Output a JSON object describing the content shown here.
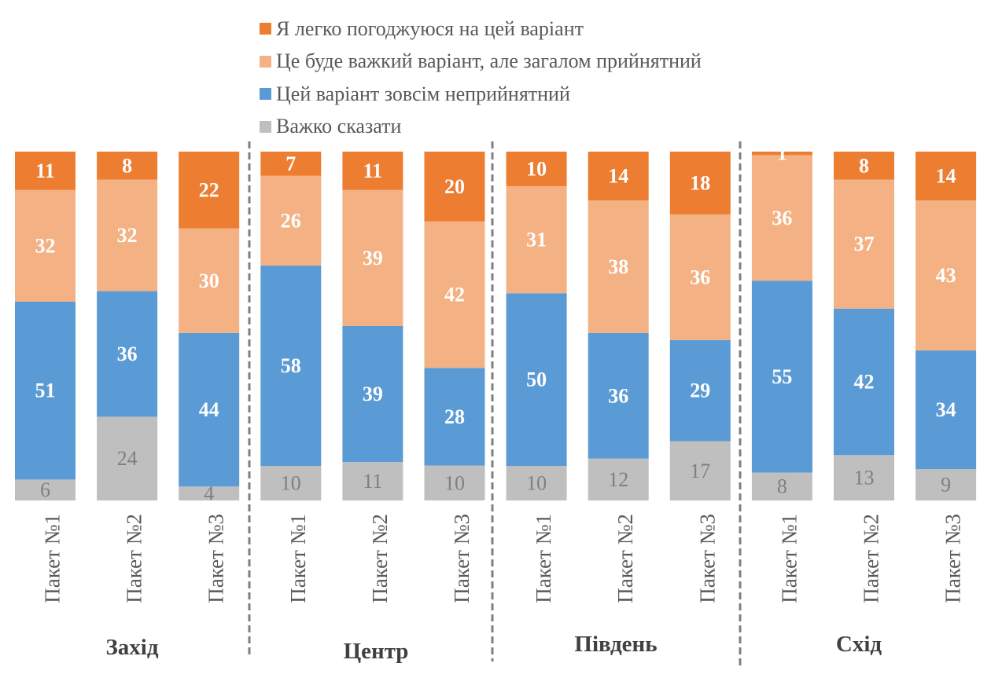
{
  "chart_data": {
    "type": "bar",
    "stacked": true,
    "percent_stacked": true,
    "title": "",
    "xlabel": "",
    "ylabel": "",
    "ylim": [
      0,
      100
    ],
    "grid": false,
    "legend_position": "top",
    "groups": [
      "Захід",
      "Центр",
      "Південь",
      "Схід"
    ],
    "categories": [
      "Пакет №1",
      "Пакет №2",
      "Пакет №3",
      "Пакет №1",
      "Пакет №2",
      "Пакет №3",
      "Пакет №1",
      "Пакет №2",
      "Пакет №3",
      "Пакет №1",
      "Пакет №2",
      "Пакет №3"
    ],
    "series": [
      {
        "name": "Важко сказати",
        "color": "#BFBFBF",
        "label_color": "#7F7F7F",
        "label_bold": false,
        "values": [
          6,
          24,
          4,
          10,
          11,
          10,
          10,
          12,
          17,
          8,
          13,
          9
        ]
      },
      {
        "name": "Цей варіант зовсім неприйнятний",
        "color": "#5B9BD5",
        "label_color": "#FFFFFF",
        "label_bold": true,
        "values": [
          51,
          36,
          44,
          58,
          39,
          28,
          50,
          36,
          29,
          55,
          42,
          34
        ]
      },
      {
        "name": "Це буде важкий варіант, але загалом прийнятний",
        "color": "#F4B183",
        "label_color": "#FFFFFF",
        "label_bold": true,
        "values": [
          32,
          32,
          30,
          26,
          39,
          42,
          31,
          38,
          36,
          36,
          37,
          43
        ]
      },
      {
        "name": "Я легко погоджуюся на цей варіант",
        "color": "#ED7D31",
        "label_color": "#FFFFFF",
        "label_bold": true,
        "values": [
          11,
          8,
          22,
          7,
          11,
          20,
          10,
          14,
          18,
          1,
          8,
          14
        ]
      }
    ],
    "legend_order": [
      3,
      2,
      1,
      0
    ]
  },
  "legend": [
    {
      "label": "Я легко погоджуюся на цей варіант",
      "color": "#ED7D31"
    },
    {
      "label": "Це буде важкий варіант, але загалом прийнятний",
      "color": "#F4B183"
    },
    {
      "label": "Цей варіант зовсім неприйнятний",
      "color": "#5B9BD5"
    },
    {
      "label": "Важко сказати",
      "color": "#BFBFBF"
    }
  ],
  "colors": {
    "tick_text": "#595959",
    "group_text": "#404040",
    "divider": "#7F7F7F"
  }
}
